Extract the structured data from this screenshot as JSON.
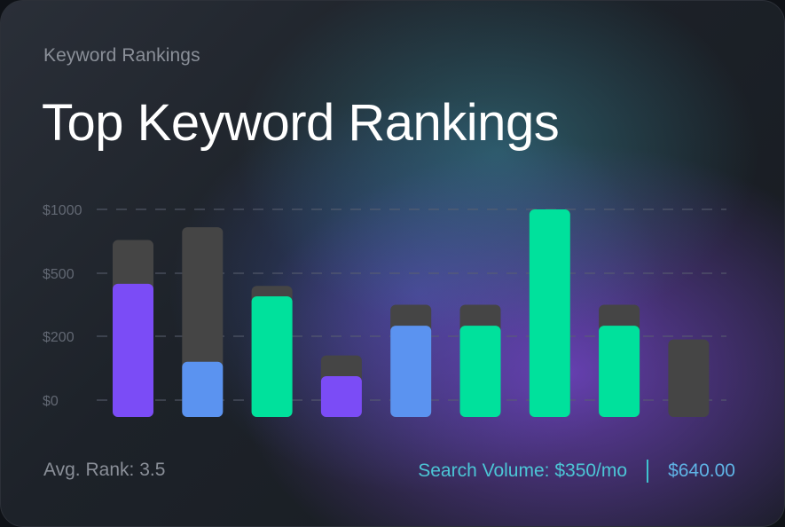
{
  "header": {
    "subtitle": "Keyword Rankings",
    "title": "Top Keyword Rankings"
  },
  "footer": {
    "avg_rank_label": "Avg. Rank:",
    "avg_rank_value": "3.5",
    "search_volume_label": "Search Volume:",
    "search_volume_value": "$350/mo",
    "total_amount": "$640.00"
  },
  "colors": {
    "purple": "#7b4cf6",
    "blue": "#5b93f0",
    "green": "#00e19c",
    "gray": "#454545",
    "grid": "#5a6070",
    "tick": "#626873"
  },
  "chart_data": {
    "type": "bar",
    "y_ticks": [
      "$1000",
      "$500",
      "$200",
      "$0"
    ],
    "y_tick_levels": [
      1000,
      500,
      200,
      0
    ],
    "grid": true,
    "bars": [
      {
        "color": "purple",
        "value": 450,
        "total": 760
      },
      {
        "color": "blue",
        "value": 120,
        "total": 860
      },
      {
        "color": "green",
        "value": 390,
        "total": 440
      },
      {
        "color": "purple",
        "value": 75,
        "total": 140
      },
      {
        "color": "blue",
        "value": 250,
        "total": 350
      },
      {
        "color": "green",
        "value": 250,
        "total": 350
      },
      {
        "color": "green",
        "value": 1000,
        "total": 1000
      },
      {
        "color": "green",
        "value": 250,
        "total": 350
      },
      {
        "color": "gray",
        "value": 0,
        "total": 190
      }
    ]
  }
}
